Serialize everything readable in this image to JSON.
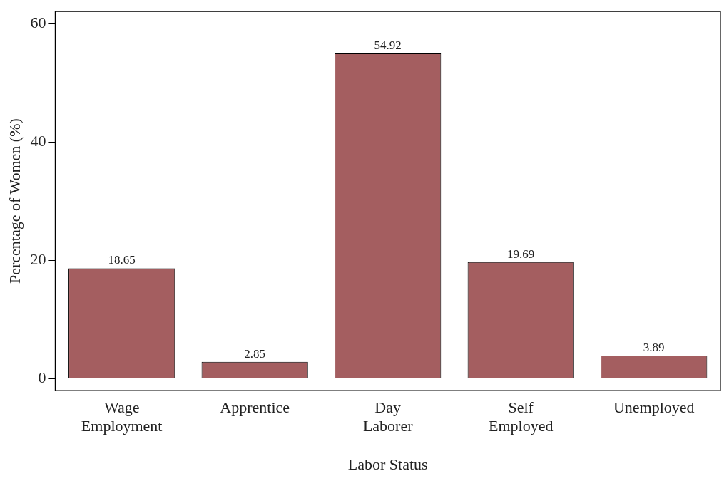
{
  "chart_data": {
    "type": "bar",
    "xlabel": "Labor Status",
    "ylabel": "Percentage of Women (%)",
    "categories": [
      "Wage Employment",
      "Apprentice",
      "Day Laborer",
      "Self Employed",
      "Unemployed"
    ],
    "values": [
      18.65,
      2.85,
      54.92,
      19.69,
      3.89
    ],
    "color": "#a45e60",
    "ylim": [
      -2,
      62
    ],
    "yticks": [
      0,
      20,
      40,
      60
    ],
    "grid": false,
    "legend": false,
    "data_labels": true
  }
}
